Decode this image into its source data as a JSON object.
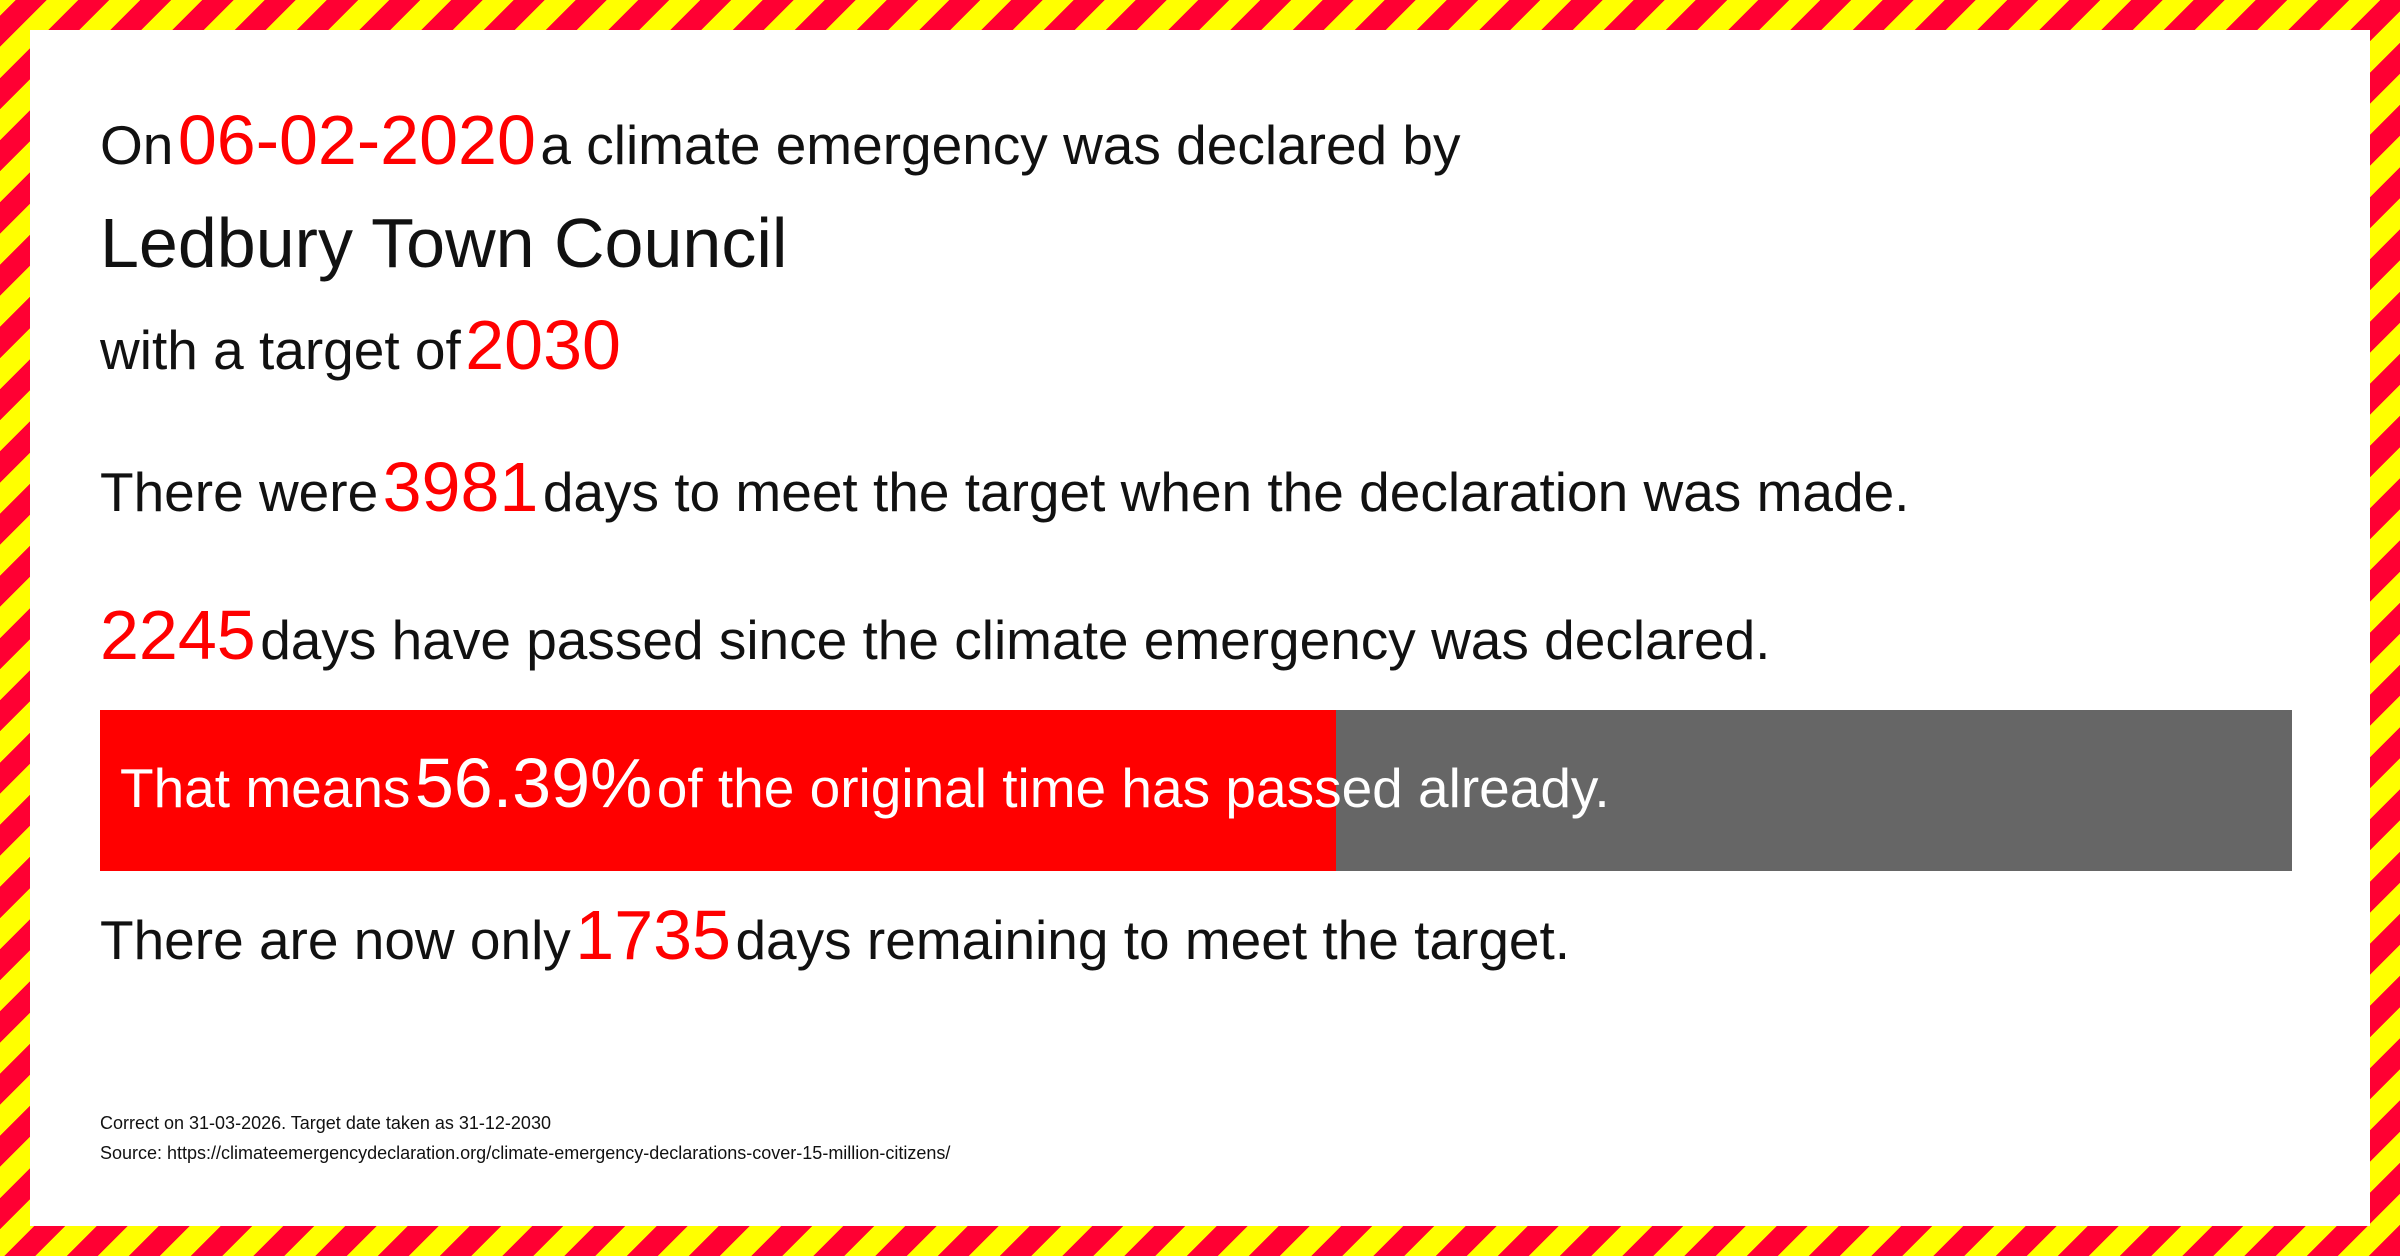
{
  "line1": {
    "prefix": "On",
    "date": "06-02-2020",
    "suffix": "a climate emergency was declared by"
  },
  "council": "Ledbury Town Council",
  "line3": {
    "prefix": "with a target of",
    "target": "2030"
  },
  "line4": {
    "prefix": "There were",
    "days": "3981",
    "suffix": "days to meet the target when the declaration was made."
  },
  "line5": {
    "days": "2245",
    "suffix": "days have passed since the climate emergency was declared."
  },
  "progress": {
    "prefix": "That means",
    "percent": "56.39%",
    "suffix": "of the original time has passed already.",
    "fraction": 0.5639,
    "fill_color": "#ff0000",
    "track_color": "#666666"
  },
  "line7": {
    "prefix": "There are now only",
    "days": "1735",
    "suffix": "days remaining to meet the target."
  },
  "footer": {
    "correct": "Correct on 31-03-2026. Target date taken as 31-12-2030",
    "source": "Source: https://climateemergencydeclaration.org/climate-emergency-declarations-cover-15-million-citizens/"
  },
  "colors": {
    "accent": "#ff0000",
    "stripe_red": "#ff0033",
    "stripe_yellow": "#ffff00"
  }
}
